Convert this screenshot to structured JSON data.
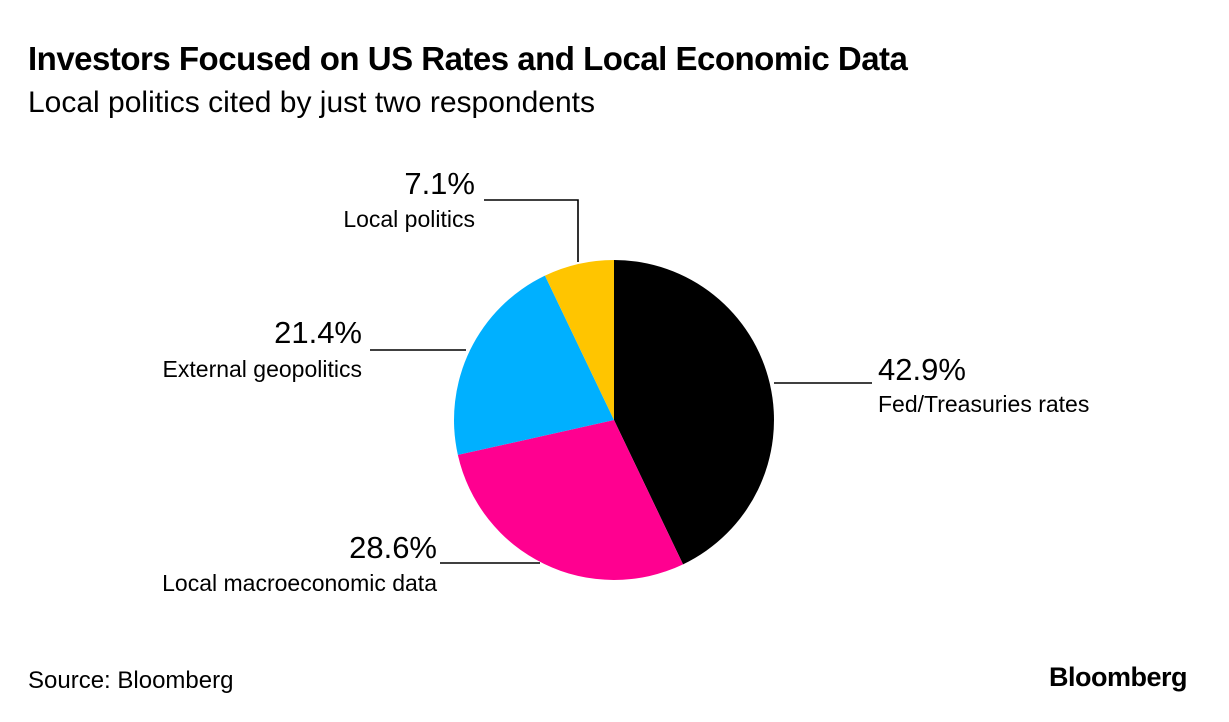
{
  "header": {
    "title": "Investors Focused on US Rates and Local Economic Data",
    "subtitle": "Local politics cited by just two respondents"
  },
  "footer": {
    "source": "Source: Bloomberg",
    "brand": "Bloomberg"
  },
  "chart_data": {
    "type": "pie",
    "title": "Investors Focused on US Rates and Local Economic Data",
    "subtitle": "Local politics cited by just two respondents",
    "start": "12 o'clock, clockwise",
    "slices": [
      {
        "label": "Fed/Treasuries rates",
        "value": 42.9,
        "value_label": "42.9%",
        "color": "#000000"
      },
      {
        "label": "Local macroeconomic data",
        "value": 28.6,
        "value_label": "28.6%",
        "color": "#ff0090"
      },
      {
        "label": "External geopolitics",
        "value": 21.4,
        "value_label": "21.4%",
        "color": "#00b0ff"
      },
      {
        "label": "Local politics",
        "value": 7.1,
        "value_label": "7.1%",
        "color": "#ffc500"
      }
    ]
  }
}
